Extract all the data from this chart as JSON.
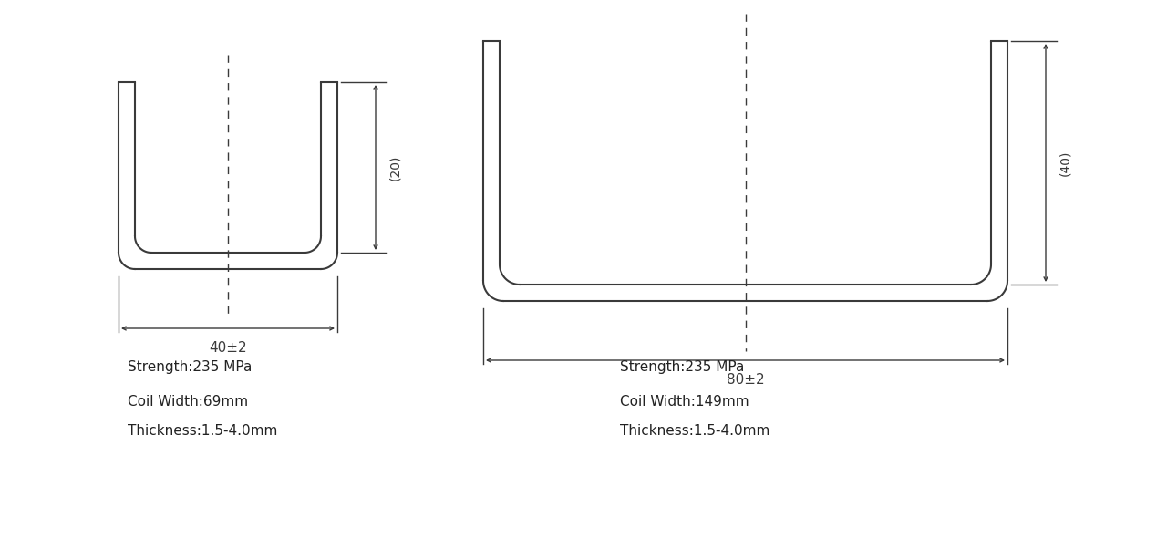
{
  "bg_color": "#ffffff",
  "line_color": "#3a3a3a",
  "dim_color": "#3a3a3a",
  "center_line_color": "#3a3a3a",
  "lw": 1.5,
  "lw_dim": 1.0,
  "profile1": {
    "label_width": "40±2",
    "label_height": "(20)",
    "strength": "Strength:235 MPa",
    "coil_width": "Coil Width:69mm",
    "thickness": "Thickness:1.5-4.0mm"
  },
  "profile2": {
    "label_width": "80±2",
    "label_height": "(40)",
    "strength": "Strength:235 MPa",
    "coil_width": "Coil Width:149mm",
    "thickness": "Thickness:1.5-4.0mm"
  }
}
